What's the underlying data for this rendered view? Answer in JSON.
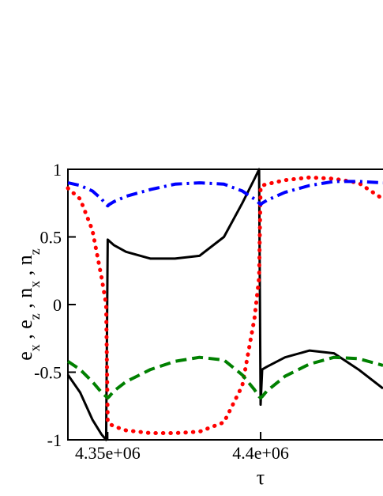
{
  "chart_data": {
    "type": "line",
    "xlabel": "τ",
    "ylabel": "ex , ez , nx , nz",
    "xlim": [
      4337000,
      4440000
    ],
    "ylim": [
      -1,
      1
    ],
    "xticks": [
      {
        "value": 4350000,
        "label": "4.35e+06"
      },
      {
        "value": 4400000,
        "label": "4.4e+06"
      }
    ],
    "yticks": [
      -1,
      -0.5,
      0,
      0.5,
      1
    ],
    "x": [
      4337000,
      4341000,
      4345000,
      4348000,
      4349500,
      4350000,
      4350500,
      4352000,
      4356000,
      4364000,
      4372000,
      4380000,
      4388000,
      4394000,
      4398000,
      4399500,
      4400000,
      4400500,
      4402000,
      4408000,
      4416000,
      4424000,
      4432000,
      4440000
    ],
    "series": [
      {
        "color": "#000000",
        "style": "solid",
        "values": [
          -0.52,
          -0.65,
          -0.85,
          -0.96,
          -1.0,
          0.48,
          0.47,
          0.44,
          0.39,
          0.34,
          0.34,
          0.36,
          0.5,
          0.75,
          0.93,
          1.0,
          -0.74,
          -0.48,
          -0.46,
          -0.39,
          -0.34,
          -0.36,
          -0.48,
          -0.62
        ]
      },
      {
        "color": "#ff0000",
        "style": "dotted",
        "values": [
          0.86,
          0.78,
          0.55,
          0.2,
          0.0,
          -0.87,
          -0.88,
          -0.9,
          -0.93,
          -0.95,
          -0.95,
          -0.94,
          -0.87,
          -0.6,
          -0.1,
          0.2,
          0.87,
          0.88,
          0.89,
          0.92,
          0.94,
          0.93,
          0.9,
          0.78
        ]
      },
      {
        "color": "#0000ff",
        "style": "dashdot",
        "values": [
          0.9,
          0.88,
          0.84,
          0.78,
          0.74,
          0.73,
          0.74,
          0.76,
          0.8,
          0.85,
          0.89,
          0.9,
          0.89,
          0.84,
          0.78,
          0.75,
          0.74,
          0.75,
          0.77,
          0.83,
          0.88,
          0.91,
          0.91,
          0.9
        ]
      },
      {
        "color": "#008000",
        "style": "dashed",
        "values": [
          -0.42,
          -0.48,
          -0.57,
          -0.65,
          -0.68,
          -0.69,
          -0.68,
          -0.64,
          -0.57,
          -0.48,
          -0.42,
          -0.39,
          -0.41,
          -0.52,
          -0.63,
          -0.68,
          -0.69,
          -0.68,
          -0.64,
          -0.53,
          -0.44,
          -0.39,
          -0.4,
          -0.45
        ]
      }
    ]
  }
}
